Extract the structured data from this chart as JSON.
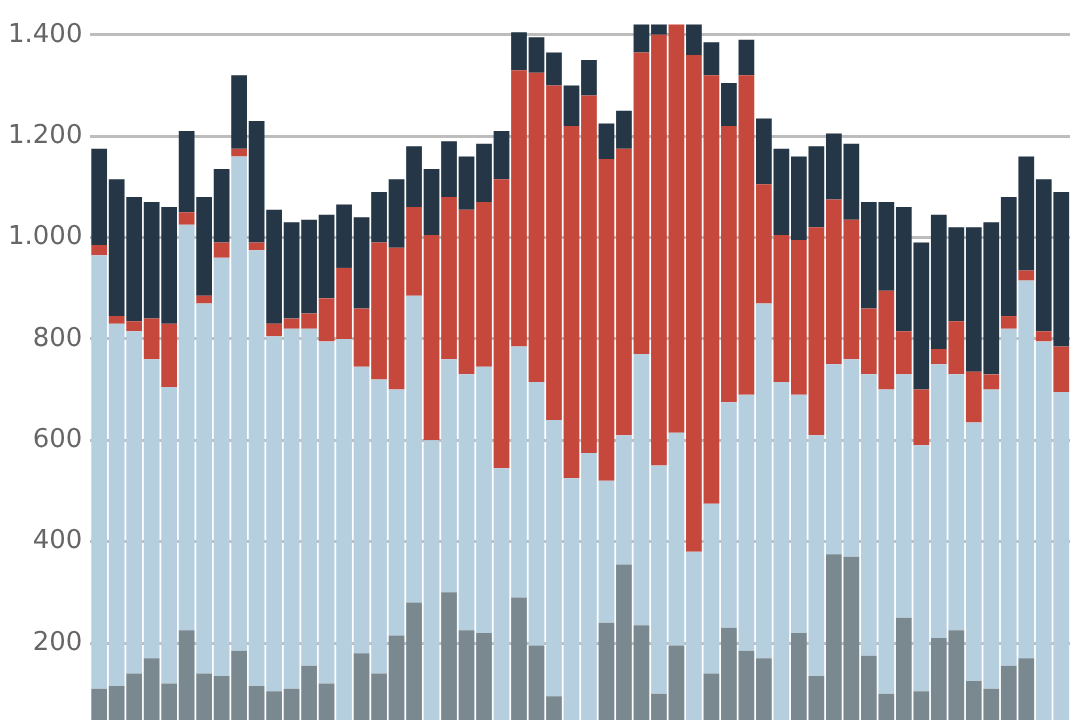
{
  "chart_data": {
    "type": "bar",
    "stacked": true,
    "categories": [
      null,
      null,
      null,
      null,
      null,
      null,
      null,
      null,
      null,
      null,
      null,
      null,
      null,
      null,
      null,
      null,
      null,
      null,
      null,
      null,
      null,
      null,
      null,
      null,
      null,
      null,
      null,
      null,
      null,
      null,
      null,
      null,
      null,
      null,
      null,
      null,
      null,
      null,
      null,
      null,
      null,
      null,
      null,
      null,
      null,
      null,
      null,
      null,
      null,
      null,
      null,
      null,
      null,
      null,
      null,
      null
    ],
    "series": [
      {
        "color": "#7a8890",
        "values": [
          110,
          115,
          140,
          170,
          120,
          225,
          140,
          135,
          185,
          115,
          105,
          110,
          155,
          120,
          null,
          180,
          140,
          215,
          280,
          null,
          300,
          225,
          220,
          null,
          290,
          195,
          95,
          null,
          null,
          240,
          355,
          235,
          100,
          195,
          null,
          140,
          230,
          185,
          170,
          null,
          220,
          135,
          375,
          370,
          175,
          100,
          250,
          105,
          210,
          225,
          125,
          110,
          155,
          170,
          null,
          null
        ]
      },
      {
        "color": "#b5cfdf",
        "values": [
          855,
          715,
          675,
          590,
          585,
          800,
          730,
          825,
          975,
          860,
          700,
          710,
          665,
          675,
          800,
          565,
          580,
          485,
          605,
          600,
          460,
          505,
          525,
          545,
          495,
          520,
          545,
          525,
          575,
          280,
          255,
          535,
          450,
          420,
          380,
          335,
          445,
          505,
          700,
          715,
          470,
          475,
          375,
          390,
          555,
          600,
          480,
          485,
          540,
          505,
          510,
          590,
          665,
          745,
          795,
          695
        ]
      },
      {
        "color": "#c6473b",
        "values": [
          20,
          15,
          20,
          80,
          125,
          25,
          15,
          30,
          15,
          15,
          25,
          20,
          30,
          85,
          140,
          115,
          270,
          280,
          175,
          405,
          320,
          325,
          325,
          570,
          545,
          610,
          660,
          695,
          705,
          635,
          565,
          595,
          850,
          805,
          980,
          845,
          545,
          630,
          235,
          290,
          305,
          410,
          325,
          275,
          130,
          195,
          85,
          110,
          30,
          105,
          100,
          30,
          25,
          20,
          20,
          90
        ]
      },
      {
        "color": "#253746",
        "values": [
          190,
          270,
          245,
          230,
          230,
          160,
          195,
          145,
          145,
          240,
          225,
          190,
          185,
          165,
          125,
          180,
          100,
          135,
          120,
          130,
          110,
          105,
          115,
          95,
          75,
          70,
          65,
          80,
          70,
          70,
          75,
          55,
          20,
          null,
          60,
          65,
          85,
          70,
          130,
          170,
          165,
          160,
          130,
          150,
          210,
          175,
          245,
          290,
          265,
          185,
          285,
          300,
          235,
          225,
          300,
          305
        ]
      }
    ],
    "ylim": [
      0,
      1422
    ],
    "yticks": [
      200,
      400,
      600,
      800,
      {
        "value": 1000,
        "label": "1.000"
      },
      {
        "value": 1200,
        "label": "1.200"
      },
      {
        "value": 1400,
        "label": "1.400"
      }
    ],
    "grid": "y",
    "legend": false,
    "tick_labels": "y"
  }
}
